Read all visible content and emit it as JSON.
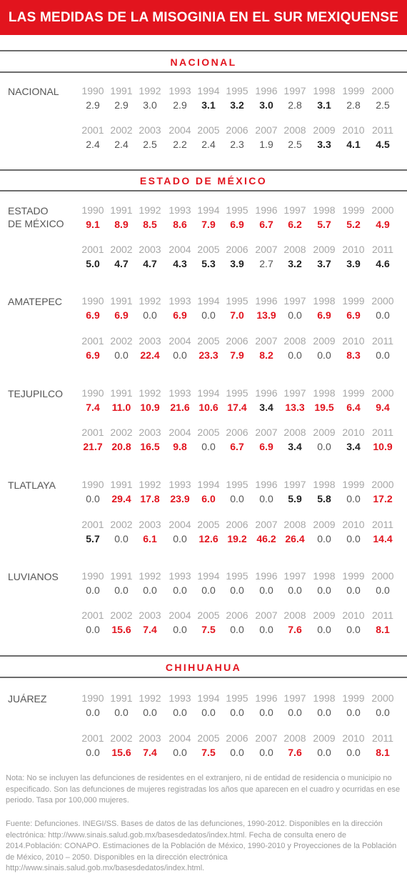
{
  "title": "LAS MEDIDAS DE LA MISOGINIA EN EL SUR MEXIQUENSE",
  "years_1": [
    "1990",
    "1991",
    "1992",
    "1993",
    "1994",
    "1995",
    "1996",
    "1997",
    "1998",
    "1999",
    "2000"
  ],
  "years_2": [
    "2001",
    "2002",
    "2003",
    "2004",
    "2005",
    "2006",
    "2007",
    "2008",
    "2009",
    "2010",
    "2011"
  ],
  "colors": {
    "accent_red": "#e2141e",
    "bold_dark": "#222222",
    "normal_gray": "#555555",
    "year_gray": "#a7a7a7"
  },
  "style_key": {
    "n": "normal gray",
    "b": "bold dark",
    "r": "bold red"
  },
  "sections": [
    {
      "title": "NACIONAL",
      "rows": [
        {
          "name": "NACIONAL",
          "v1": [
            "2.9",
            "2.9",
            "3.0",
            "2.9",
            "3.1",
            "3.2",
            "3.0",
            "2.8",
            "3.1",
            "2.8",
            "2.5"
          ],
          "s1": [
            "n",
            "n",
            "n",
            "n",
            "b",
            "b",
            "b",
            "n",
            "b",
            "n",
            "n"
          ],
          "v2": [
            "2.4",
            "2.4",
            "2.5",
            "2.2",
            "2.4",
            "2.3",
            "1.9",
            "2.5",
            "3.3",
            "4.1",
            "4.5"
          ],
          "s2": [
            "n",
            "n",
            "n",
            "n",
            "n",
            "n",
            "n",
            "n",
            "b",
            "b",
            "b"
          ]
        }
      ]
    },
    {
      "title": "ESTADO DE MÉXICO",
      "rows": [
        {
          "name": "ESTADO\nDE MÉXICO",
          "v1": [
            "9.1",
            "8.9",
            "8.5",
            "8.6",
            "7.9",
            "6.9",
            "6.7",
            "6.2",
            "5.7",
            "5.2",
            "4.9"
          ],
          "s1": [
            "r",
            "r",
            "r",
            "r",
            "r",
            "r",
            "r",
            "r",
            "r",
            "r",
            "r"
          ],
          "v2": [
            "5.0",
            "4.7",
            "4.7",
            "4.3",
            "5.3",
            "3.9",
            "2.7",
            "3.2",
            "3.7",
            "3.9",
            "4.6"
          ],
          "s2": [
            "b",
            "b",
            "b",
            "b",
            "b",
            "b",
            "n",
            "b",
            "b",
            "b",
            "b"
          ]
        },
        {
          "name": "AMATEPEC",
          "v1": [
            "6.9",
            "6.9",
            "0.0",
            "6.9",
            "0.0",
            "7.0",
            "13.9",
            "0.0",
            "6.9",
            "6.9",
            "0.0"
          ],
          "s1": [
            "r",
            "r",
            "n",
            "r",
            "n",
            "r",
            "r",
            "n",
            "r",
            "r",
            "n"
          ],
          "v2": [
            "6.9",
            "0.0",
            "22.4",
            "0.0",
            "23.3",
            "7.9",
            "8.2",
            "0.0",
            "0.0",
            "8.3",
            "0.0"
          ],
          "s2": [
            "r",
            "n",
            "r",
            "n",
            "r",
            "r",
            "r",
            "n",
            "n",
            "r",
            "n"
          ]
        },
        {
          "name": "TEJUPILCO",
          "v1": [
            "7.4",
            "11.0",
            "10.9",
            "21.6",
            "10.6",
            "17.4",
            "3.4",
            "13.3",
            "19.5",
            "6.4",
            "9.4"
          ],
          "s1": [
            "r",
            "r",
            "r",
            "r",
            "r",
            "r",
            "b",
            "r",
            "r",
            "r",
            "r"
          ],
          "v2": [
            "21.7",
            "20.8",
            "16.5",
            "9.8",
            "0.0",
            "6.7",
            "6.9",
            "3.4",
            "0.0",
            "3.4",
            "10.9"
          ],
          "s2": [
            "r",
            "r",
            "r",
            "r",
            "n",
            "r",
            "r",
            "b",
            "n",
            "b",
            "r"
          ]
        },
        {
          "name": "TLATLAYA",
          "v1": [
            "0.0",
            "29.4",
            "17.8",
            "23.9",
            "6.0",
            "0.0",
            "0.0",
            "5.9",
            "5.8",
            "0.0",
            "17.2"
          ],
          "s1": [
            "n",
            "r",
            "r",
            "r",
            "r",
            "n",
            "n",
            "b",
            "b",
            "n",
            "r"
          ],
          "v2": [
            "5.7",
            "0.0",
            "6.1",
            "0.0",
            "12.6",
            "19.2",
            "46.2",
            "26.4",
            "0.0",
            "0.0",
            "14.4"
          ],
          "s2": [
            "b",
            "n",
            "r",
            "n",
            "r",
            "r",
            "r",
            "r",
            "n",
            "n",
            "r"
          ]
        },
        {
          "name": "LUVIANOS",
          "v1": [
            "0.0",
            "0.0",
            "0.0",
            "0.0",
            "0.0",
            "0.0",
            "0.0",
            "0.0",
            "0.0",
            "0.0",
            "0.0"
          ],
          "s1": [
            "n",
            "n",
            "n",
            "n",
            "n",
            "n",
            "n",
            "n",
            "n",
            "n",
            "n"
          ],
          "v2": [
            "0.0",
            "15.6",
            "7.4",
            "0.0",
            "7.5",
            "0.0",
            "0.0",
            "7.6",
            "0.0",
            "0.0",
            "8.1"
          ],
          "s2": [
            "n",
            "r",
            "r",
            "n",
            "r",
            "n",
            "n",
            "r",
            "n",
            "n",
            "r"
          ]
        }
      ]
    },
    {
      "title": "CHIHUAHUA",
      "rows": [
        {
          "name": "JUÁREZ",
          "v1": [
            "0.0",
            "0.0",
            "0.0",
            "0.0",
            "0.0",
            "0.0",
            "0.0",
            "0.0",
            "0.0",
            "0.0",
            "0.0"
          ],
          "s1": [
            "n",
            "n",
            "n",
            "n",
            "n",
            "n",
            "n",
            "n",
            "n",
            "n",
            "n"
          ],
          "v2": [
            "0.0",
            "15.6",
            "7.4",
            "0.0",
            "7.5",
            "0.0",
            "0.0",
            "7.6",
            "0.0",
            "0.0",
            "8.1"
          ],
          "s2": [
            "n",
            "r",
            "r",
            "n",
            "r",
            "n",
            "n",
            "rn",
            "n",
            "n",
            "r"
          ]
        }
      ]
    }
  ],
  "note": "Nota: No se incluyen las defunciones de residentes en el extranjero, ni de entidad de residencia o municipio no especificado. Son las defunciones de mujeres registradas los años que aparecen en el cuadro y ocurridas en ese periodo. Tasa por 100,000 mujeres.",
  "source": "Fuente: Defunciones. INEGI/SS. Bases de datos de las defunciones, 1990-2012. Disponibles en la dirección electrónica: http://www.sinais.salud.gob.mx/basesdedatos/index.html. Fecha de consulta enero de 2014.Población: CONAPO. Estimaciones de la Población de México, 1990-2010 y  Proyecciones de la Población de México, 2010 – 2050. Disponibles en la dirección electrónica http://www.sinais.salud.gob.mx/basesdedatos/index.html."
}
